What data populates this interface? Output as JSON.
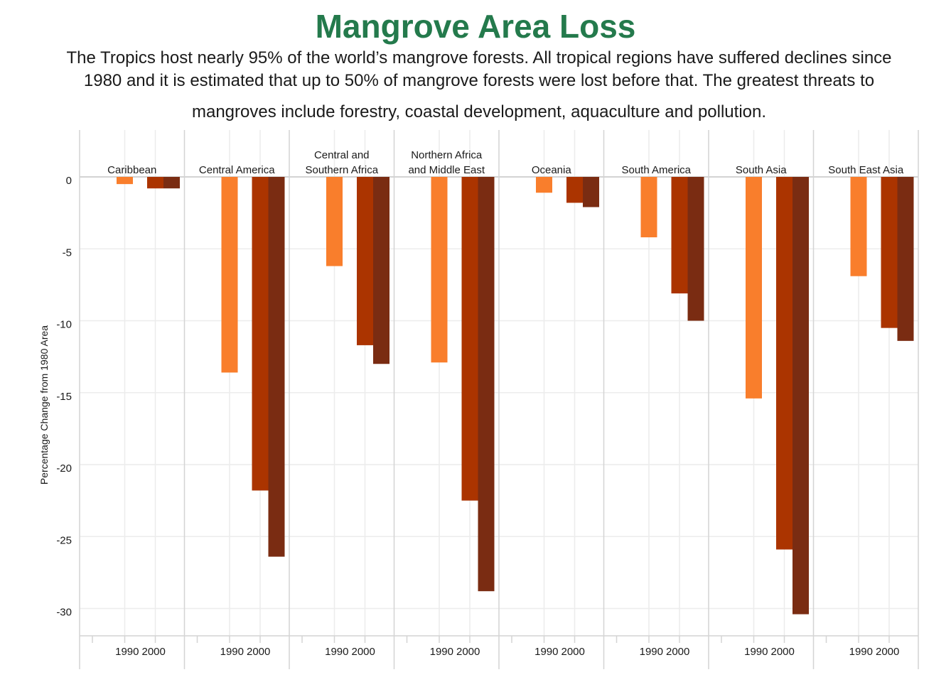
{
  "title": "Mangrove Area Loss",
  "subtitle_lines": [
    "The Tropics host nearly 95% of the world’s mangrove forests. All tropical regions have suffered declines since",
    "1980 and it is estimated that up to 50% of mangrove forests were lost before that. The greatest threats to",
    "mangroves include forestry, coastal development, aquaculture and pollution."
  ],
  "colors": {
    "title": "#247a4c",
    "series": [
      "#f97e2c",
      "#ab3400",
      "#7a2c12"
    ],
    "grid": "#ececec",
    "panel_border": "#d4d4d4",
    "zero_line": "#c8c8c8"
  },
  "chart_data": {
    "type": "bar",
    "ylabel": "Percentage Change from 1980 Area",
    "xlabel": "",
    "ylim": [
      -32,
      3
    ],
    "yticks": [
      0,
      -5,
      -10,
      -15,
      -20,
      -25,
      -30
    ],
    "x_ticks": [
      "1990",
      "2000"
    ],
    "grid": true,
    "legend": "none",
    "panels": [
      {
        "label": [
          "Caribbean"
        ],
        "values": [
          -0.5,
          -0.8,
          -0.8
        ]
      },
      {
        "label": [
          "Central America"
        ],
        "values": [
          -13.6,
          -21.8,
          -26.4
        ]
      },
      {
        "label": [
          "Central and",
          "Southern Africa"
        ],
        "values": [
          -6.2,
          -11.7,
          -13.0
        ]
      },
      {
        "label": [
          "Northern Africa",
          "and Middle East"
        ],
        "values": [
          -12.9,
          -22.5,
          -28.8
        ]
      },
      {
        "label": [
          "Oceania"
        ],
        "values": [
          -1.1,
          -1.8,
          -2.1
        ]
      },
      {
        "label": [
          "South America"
        ],
        "values": [
          -4.2,
          -8.1,
          -10.0
        ]
      },
      {
        "label": [
          "South Asia"
        ],
        "values": [
          -15.4,
          -25.9,
          -30.4
        ]
      },
      {
        "label": [
          "South East Asia"
        ],
        "values": [
          -6.9,
          -10.5,
          -11.4
        ]
      }
    ]
  }
}
